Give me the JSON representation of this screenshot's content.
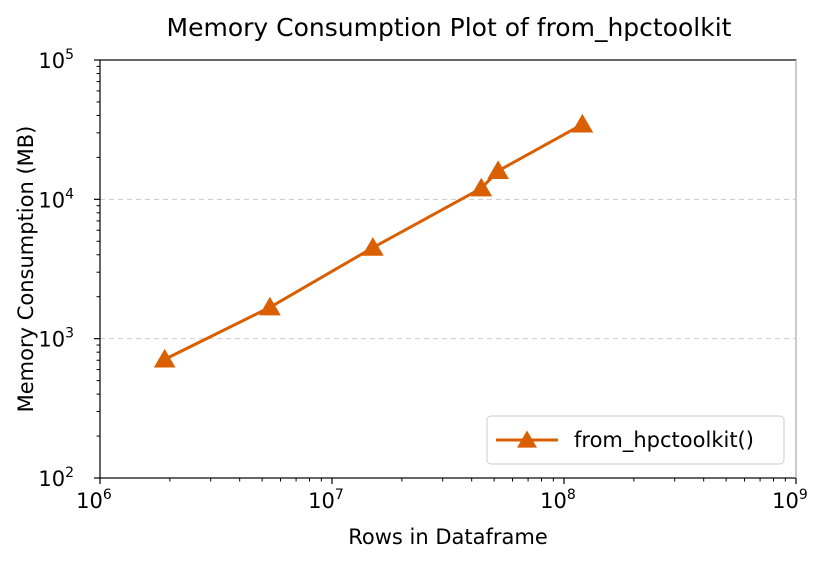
{
  "chart_data": {
    "type": "line",
    "title": "Memory Consumption Plot of from_hpctoolkit",
    "xlabel": "Rows in Dataframe",
    "ylabel": "Memory Consumption (MB)",
    "xscale": "log",
    "yscale": "log",
    "xlim": [
      1000000,
      1000000000
    ],
    "ylim": [
      100,
      100000
    ],
    "xticks": [
      {
        "value": 1000000,
        "base": "10",
        "exp": "6"
      },
      {
        "value": 10000000,
        "base": "10",
        "exp": "7"
      },
      {
        "value": 100000000,
        "base": "10",
        "exp": "8"
      },
      {
        "value": 1000000000,
        "base": "10",
        "exp": "9"
      }
    ],
    "yticks": [
      {
        "value": 100,
        "base": "10",
        "exp": "2"
      },
      {
        "value": 1000,
        "base": "10",
        "exp": "3"
      },
      {
        "value": 10000,
        "base": "10",
        "exp": "4"
      },
      {
        "value": 100000,
        "base": "10",
        "exp": "5"
      }
    ],
    "grid": "y-major-dashed",
    "legend_position": "lower-right",
    "series": [
      {
        "name": "from_hpctoolkit()",
        "color": "#d95f02",
        "marker": "triangle",
        "x": [
          1900000,
          5400000,
          15000000,
          44000000,
          52000000,
          120000000
        ],
        "y": [
          710,
          1680,
          4500,
          12000,
          16000,
          34500
        ]
      }
    ]
  }
}
